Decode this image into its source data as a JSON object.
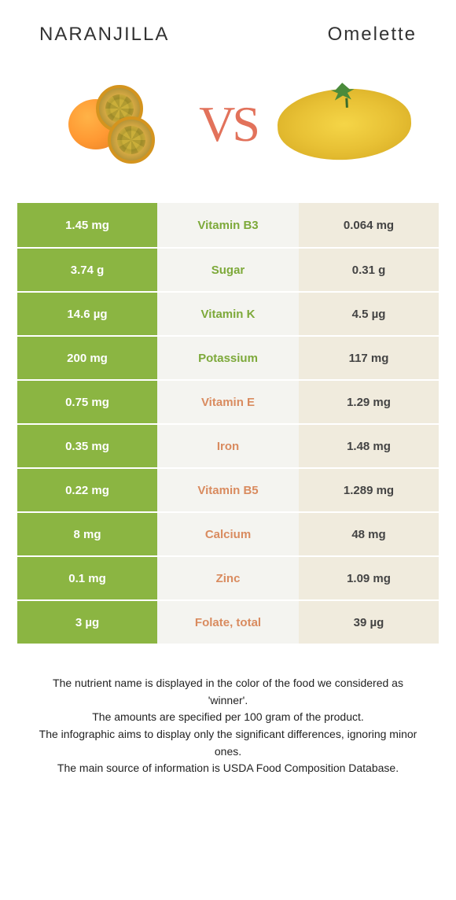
{
  "header": {
    "left_title": "NARANJILLA",
    "right_title": "Omelette",
    "vs": "VS"
  },
  "colors": {
    "left_bg": "#8bb542",
    "left_text": "#ffffff",
    "right_bg": "#f0ebdd",
    "right_text": "#444444",
    "mid_bg": "#f4f4f0",
    "winner_left_color": "#7da93a",
    "winner_right_color": "#d98b5f",
    "vs_color": "#e2725b"
  },
  "rows": [
    {
      "left": "1.45 mg",
      "label": "Vitamin B3",
      "right": "0.064 mg",
      "winner": "left"
    },
    {
      "left": "3.74 g",
      "label": "Sugar",
      "right": "0.31 g",
      "winner": "left"
    },
    {
      "left": "14.6 µg",
      "label": "Vitamin K",
      "right": "4.5 µg",
      "winner": "left"
    },
    {
      "left": "200 mg",
      "label": "Potassium",
      "right": "117 mg",
      "winner": "left"
    },
    {
      "left": "0.75 mg",
      "label": "Vitamin E",
      "right": "1.29 mg",
      "winner": "right"
    },
    {
      "left": "0.35 mg",
      "label": "Iron",
      "right": "1.48 mg",
      "winner": "right"
    },
    {
      "left": "0.22 mg",
      "label": "Vitamin B5",
      "right": "1.289 mg",
      "winner": "right"
    },
    {
      "left": "8 mg",
      "label": "Calcium",
      "right": "48 mg",
      "winner": "right"
    },
    {
      "left": "0.1 mg",
      "label": "Zinc",
      "right": "1.09 mg",
      "winner": "right"
    },
    {
      "left": "3 µg",
      "label": "Folate, total",
      "right": "39 µg",
      "winner": "right"
    }
  ],
  "footer": {
    "line1": "The nutrient name is displayed in the color of the food we considered as 'winner'.",
    "line2": "The amounts are specified per 100 gram of the product.",
    "line3": "The infographic aims to display only the significant differences, ignoring minor ones.",
    "line4": "The main source of information is USDA Food Composition Database."
  }
}
